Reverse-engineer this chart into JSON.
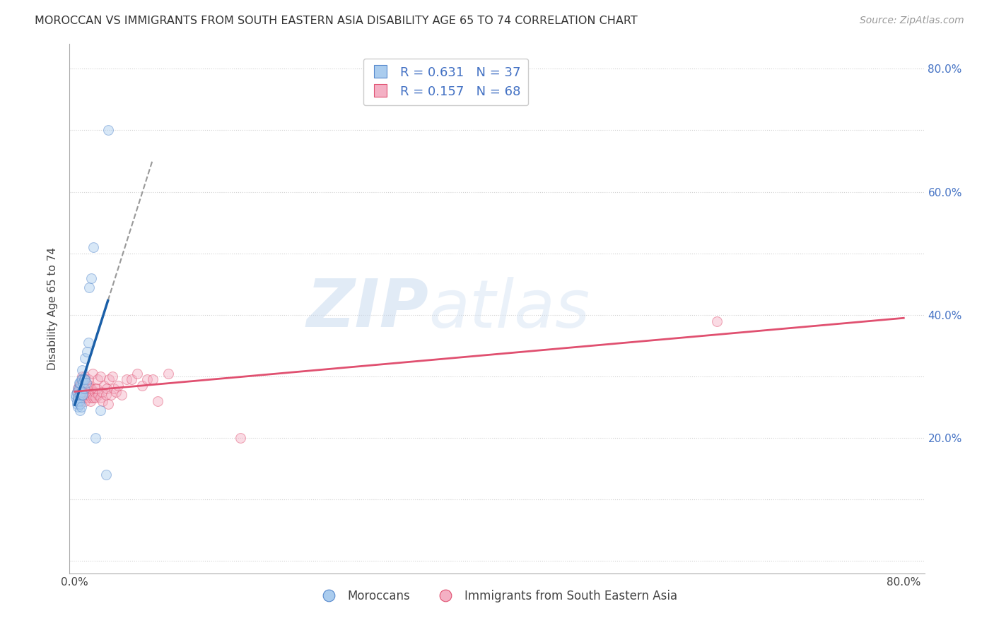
{
  "title": "MOROCCAN VS IMMIGRANTS FROM SOUTH EASTERN ASIA DISABILITY AGE 65 TO 74 CORRELATION CHART",
  "source": "Source: ZipAtlas.com",
  "ylabel_label": "Disability Age 65 to 74",
  "xlim": [
    -0.005,
    0.82
  ],
  "ylim": [
    -0.02,
    0.84
  ],
  "moroccan_color": "#aaccee",
  "moroccan_edge_color": "#5588cc",
  "immigrant_color": "#f4b0c4",
  "immigrant_edge_color": "#e05070",
  "moroccan_R": 0.631,
  "moroccan_N": 37,
  "immigrant_R": 0.157,
  "immigrant_N": 68,
  "legend_label_moroccan": "Moroccans",
  "legend_label_immigrant": "Immigrants from South Eastern Asia",
  "moroccan_x": [
    0.001,
    0.001,
    0.002,
    0.002,
    0.002,
    0.003,
    0.003,
    0.003,
    0.004,
    0.004,
    0.004,
    0.005,
    0.005,
    0.005,
    0.005,
    0.006,
    0.006,
    0.006,
    0.007,
    0.007,
    0.007,
    0.008,
    0.008,
    0.009,
    0.009,
    0.01,
    0.01,
    0.011,
    0.012,
    0.013,
    0.014,
    0.016,
    0.018,
    0.02,
    0.025,
    0.03,
    0.032
  ],
  "moroccan_y": [
    0.265,
    0.27,
    0.255,
    0.26,
    0.275,
    0.25,
    0.265,
    0.28,
    0.26,
    0.28,
    0.29,
    0.245,
    0.255,
    0.27,
    0.29,
    0.25,
    0.275,
    0.295,
    0.27,
    0.295,
    0.31,
    0.27,
    0.29,
    0.28,
    0.295,
    0.295,
    0.33,
    0.29,
    0.34,
    0.355,
    0.445,
    0.46,
    0.51,
    0.2,
    0.245,
    0.14,
    0.7
  ],
  "immigrant_x": [
    0.002,
    0.003,
    0.003,
    0.004,
    0.004,
    0.005,
    0.005,
    0.005,
    0.006,
    0.006,
    0.006,
    0.007,
    0.007,
    0.007,
    0.008,
    0.008,
    0.008,
    0.009,
    0.009,
    0.01,
    0.01,
    0.01,
    0.011,
    0.011,
    0.012,
    0.012,
    0.013,
    0.013,
    0.014,
    0.014,
    0.015,
    0.015,
    0.016,
    0.016,
    0.017,
    0.017,
    0.018,
    0.019,
    0.02,
    0.02,
    0.021,
    0.022,
    0.023,
    0.025,
    0.025,
    0.026,
    0.027,
    0.028,
    0.03,
    0.031,
    0.032,
    0.033,
    0.035,
    0.036,
    0.038,
    0.04,
    0.042,
    0.045,
    0.05,
    0.055,
    0.06,
    0.065,
    0.07,
    0.075,
    0.08,
    0.09,
    0.16,
    0.62
  ],
  "immigrant_y": [
    0.275,
    0.265,
    0.28,
    0.27,
    0.285,
    0.26,
    0.275,
    0.285,
    0.265,
    0.28,
    0.29,
    0.27,
    0.285,
    0.3,
    0.27,
    0.285,
    0.295,
    0.28,
    0.295,
    0.26,
    0.28,
    0.3,
    0.27,
    0.29,
    0.265,
    0.285,
    0.275,
    0.295,
    0.27,
    0.285,
    0.26,
    0.28,
    0.265,
    0.28,
    0.27,
    0.305,
    0.265,
    0.275,
    0.265,
    0.28,
    0.28,
    0.295,
    0.27,
    0.265,
    0.3,
    0.275,
    0.26,
    0.285,
    0.27,
    0.28,
    0.255,
    0.295,
    0.27,
    0.3,
    0.28,
    0.275,
    0.285,
    0.27,
    0.295,
    0.295,
    0.305,
    0.285,
    0.295,
    0.295,
    0.26,
    0.305,
    0.2,
    0.39
  ],
  "background_color": "#ffffff",
  "grid_color": "#cccccc",
  "watermark_text": "ZIP",
  "watermark_text2": "atlas",
  "marker_size": 100,
  "marker_alpha": 0.45,
  "marker_linewidth": 0.8,
  "x_tick_positions": [
    0.0,
    0.1,
    0.2,
    0.3,
    0.4,
    0.5,
    0.6,
    0.7,
    0.8
  ],
  "x_tick_labels": [
    "0.0%",
    "",
    "",
    "",
    "",
    "",
    "",
    "",
    "80.0%"
  ],
  "y_tick_positions": [
    0.0,
    0.1,
    0.2,
    0.3,
    0.4,
    0.5,
    0.6,
    0.7,
    0.8
  ],
  "y_tick_labels_right": [
    "",
    "",
    "20.0%",
    "",
    "40.0%",
    "",
    "60.0%",
    "",
    "80.0%"
  ]
}
